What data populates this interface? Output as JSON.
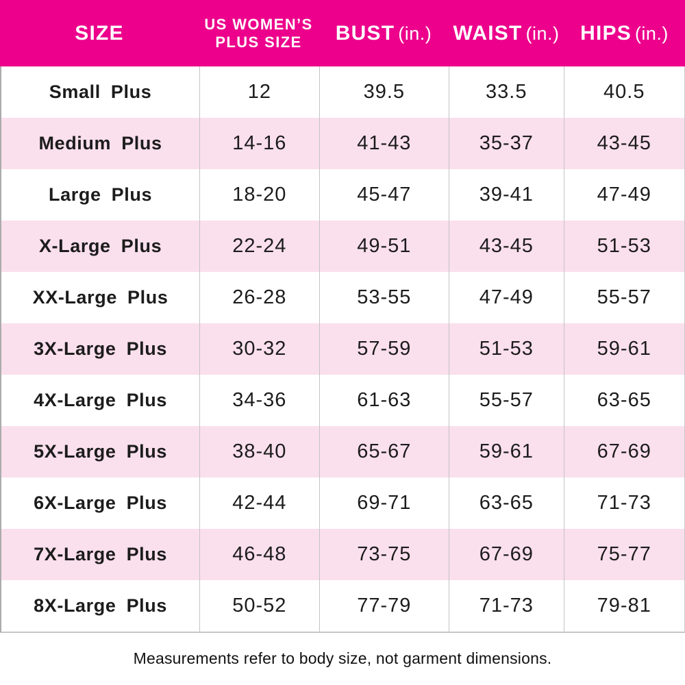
{
  "colors": {
    "header_bg": "#EC008C",
    "header_text": "#FFFFFF",
    "row_bg": "#FFFFFF",
    "row_alt_bg": "#FADFEC",
    "body_text": "#1C1C1C",
    "divider": "#C3C3C3"
  },
  "table": {
    "columns": [
      {
        "id": "size",
        "line1": "SIZE",
        "line2": "",
        "unit": ""
      },
      {
        "id": "us_plus",
        "line1": "US WOMEN’S",
        "line2": "PLUS SIZE",
        "unit": ""
      },
      {
        "id": "bust",
        "line1": "BUST",
        "line2": "",
        "unit": "(in.)"
      },
      {
        "id": "waist",
        "line1": "WAIST",
        "line2": "",
        "unit": "(in.)"
      },
      {
        "id": "hips",
        "line1": "HIPS",
        "line2": "",
        "unit": "(in.)"
      }
    ],
    "rows": [
      {
        "size": "Small Plus",
        "us_plus": "12",
        "bust": "39.5",
        "waist": "33.5",
        "hips": "40.5"
      },
      {
        "size": "Medium Plus",
        "us_plus": "14-16",
        "bust": "41-43",
        "waist": "35-37",
        "hips": "43-45"
      },
      {
        "size": "Large Plus",
        "us_plus": "18-20",
        "bust": "45-47",
        "waist": "39-41",
        "hips": "47-49"
      },
      {
        "size": "X-Large Plus",
        "us_plus": "22-24",
        "bust": "49-51",
        "waist": "43-45",
        "hips": "51-53"
      },
      {
        "size": "XX-Large Plus",
        "us_plus": "26-28",
        "bust": "53-55",
        "waist": "47-49",
        "hips": "55-57"
      },
      {
        "size": "3X-Large Plus",
        "us_plus": "30-32",
        "bust": "57-59",
        "waist": "51-53",
        "hips": "59-61"
      },
      {
        "size": "4X-Large Plus",
        "us_plus": "34-36",
        "bust": "61-63",
        "waist": "55-57",
        "hips": "63-65"
      },
      {
        "size": "5X-Large Plus",
        "us_plus": "38-40",
        "bust": "65-67",
        "waist": "59-61",
        "hips": "67-69"
      },
      {
        "size": "6X-Large Plus",
        "us_plus": "42-44",
        "bust": "69-71",
        "waist": "63-65",
        "hips": "71-73"
      },
      {
        "size": "7X-Large Plus",
        "us_plus": "46-48",
        "bust": "73-75",
        "waist": "67-69",
        "hips": "75-77"
      },
      {
        "size": "8X-Large Plus",
        "us_plus": "50-52",
        "bust": "77-79",
        "waist": "71-73",
        "hips": "79-81"
      }
    ]
  },
  "footnote": "Measurements refer to body size, not garment dimensions.",
  "chart_data": {
    "type": "table",
    "title": "US Women's Plus Size chart",
    "columns": [
      "SIZE",
      "US WOMEN’S PLUS SIZE",
      "BUST (in.)",
      "WAIST (in.)",
      "HIPS (in.)"
    ],
    "rows": [
      [
        "Small Plus",
        "12",
        "39.5",
        "33.5",
        "40.5"
      ],
      [
        "Medium Plus",
        "14-16",
        "41-43",
        "35-37",
        "43-45"
      ],
      [
        "Large Plus",
        "18-20",
        "45-47",
        "39-41",
        "47-49"
      ],
      [
        "X-Large Plus",
        "22-24",
        "49-51",
        "43-45",
        "51-53"
      ],
      [
        "XX-Large Plus",
        "26-28",
        "53-55",
        "47-49",
        "55-57"
      ],
      [
        "3X-Large Plus",
        "30-32",
        "57-59",
        "51-53",
        "59-61"
      ],
      [
        "4X-Large Plus",
        "34-36",
        "61-63",
        "55-57",
        "63-65"
      ],
      [
        "5X-Large Plus",
        "38-40",
        "65-67",
        "59-61",
        "67-69"
      ],
      [
        "6X-Large Plus",
        "42-44",
        "69-71",
        "63-65",
        "71-73"
      ],
      [
        "7X-Large Plus",
        "46-48",
        "73-75",
        "67-69",
        "75-77"
      ],
      [
        "8X-Large Plus",
        "50-52",
        "77-79",
        "71-73",
        "79-81"
      ]
    ],
    "annotations": [
      "Measurements refer to body size, not garment dimensions."
    ],
    "layout": {
      "header_bg": "#EC008C",
      "zebra_striping": true,
      "stripe_color": "#FADFEC"
    }
  }
}
